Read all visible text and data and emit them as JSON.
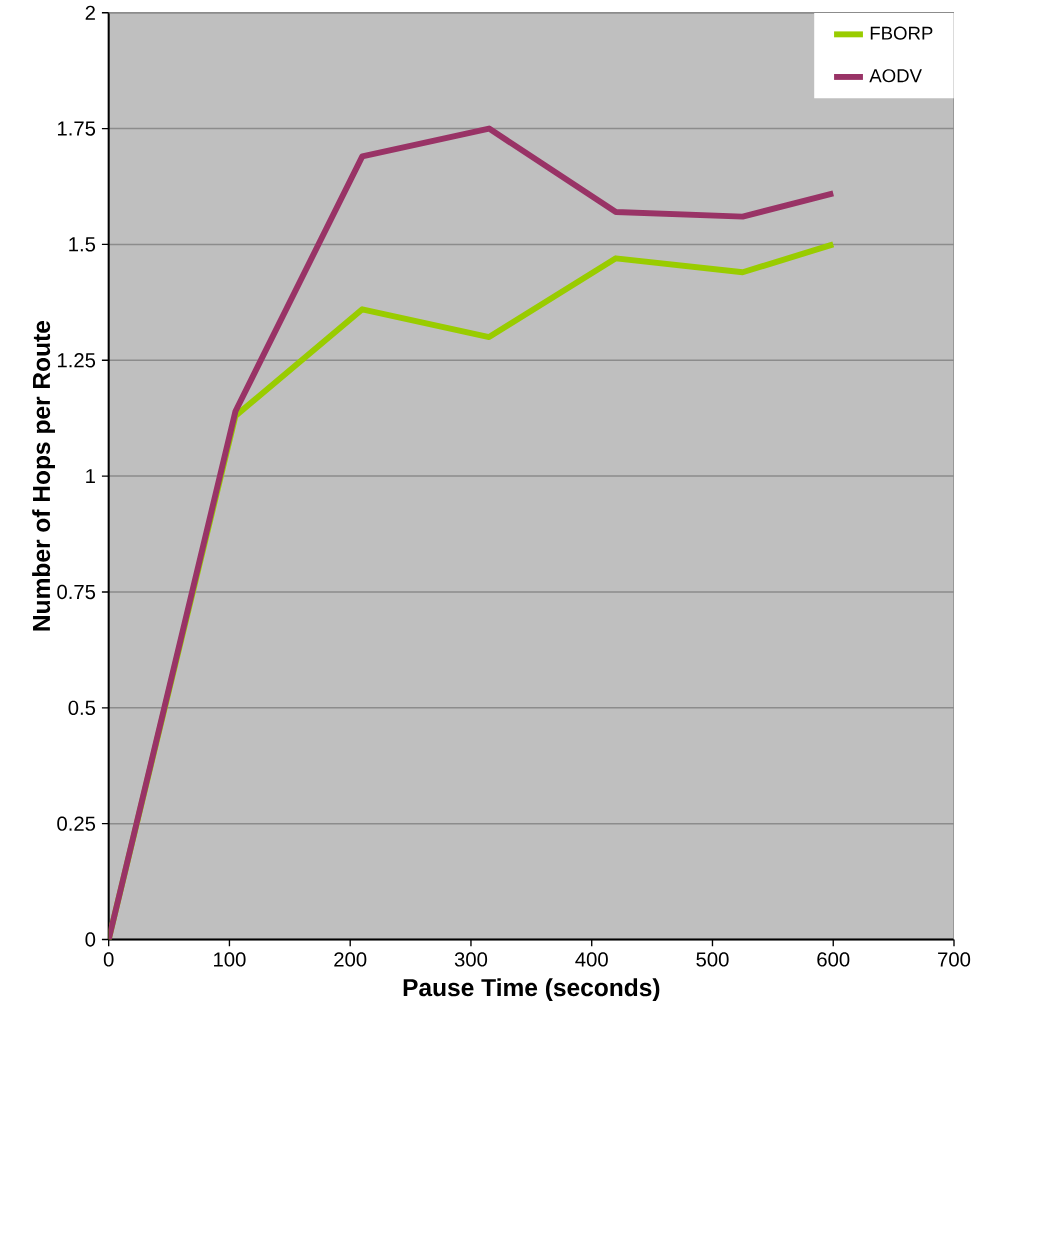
{
  "chart_data": {
    "type": "line",
    "xlabel": "Pause Time (seconds)",
    "ylabel": "Number of Hops per Route",
    "x": [
      0,
      105,
      210,
      315,
      420,
      525,
      600
    ],
    "series": [
      {
        "name": "FBORP",
        "color": "#99cc00",
        "values": [
          0,
          1.13,
          1.36,
          1.3,
          1.47,
          1.44,
          1.5
        ]
      },
      {
        "name": "AODV",
        "color": "#993366",
        "values": [
          0,
          1.14,
          1.69,
          1.75,
          1.57,
          1.56,
          1.61
        ]
      }
    ],
    "xlim": [
      0,
      700
    ],
    "xticks": [
      0,
      100,
      200,
      300,
      400,
      500,
      600,
      700
    ],
    "ylim": [
      0,
      2
    ],
    "yticks": [
      0,
      0.25,
      0.5,
      0.75,
      1,
      1.25,
      1.5,
      1.75,
      2
    ],
    "grid": "y",
    "legend": "top right",
    "marker": "none",
    "line_style": "solid"
  }
}
